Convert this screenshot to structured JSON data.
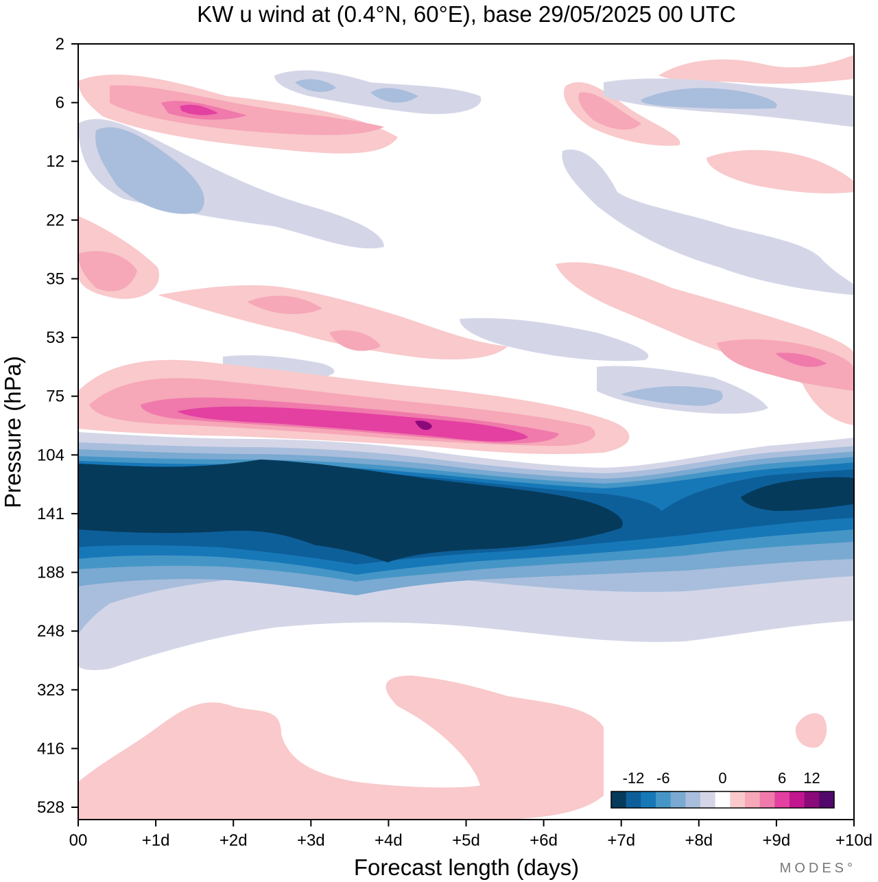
{
  "chart_data": {
    "type": "heatmap",
    "title": "KW u wind at (0.4°N, 60°E),  base 29/05/2025  00 UTC",
    "xlabel": "Forecast length (days)",
    "ylabel": "Pressure (hPa)",
    "x_ticks": [
      "00",
      "+1d",
      "+2d",
      "+3d",
      "+4d",
      "+5d",
      "+6d",
      "+7d",
      "+8d",
      "+9d",
      "+10d"
    ],
    "y_ticks": [
      "2",
      "6",
      "12",
      "22",
      "35",
      "53",
      "75",
      "104",
      "141",
      "188",
      "248",
      "323",
      "416",
      "528"
    ],
    "xlim": [
      0,
      10
    ],
    "y_scale": "log",
    "colorbar": {
      "labels": [
        "-12",
        "-6",
        "0",
        "6",
        "12"
      ],
      "levels": [
        -14,
        -12,
        -10,
        -8,
        -6,
        -4,
        -2,
        2,
        4,
        6,
        8,
        10,
        12,
        14
      ],
      "colors": [
        "#063a5a",
        "#0d5f9a",
        "#1778b8",
        "#4596c6",
        "#7aa9d1",
        "#a9bedc",
        "#d4d6e8",
        "#ffffff",
        "#f9c9cb",
        "#f6a7b8",
        "#f07aab",
        "#e340a1",
        "#c2168e",
        "#8a0a7a",
        "#52086a"
      ],
      "placement": "bottom-right"
    },
    "features": [
      {
        "x_range": [
          0,
          10
        ],
        "y_range": [
          100,
          175
        ],
        "value": -14
      },
      {
        "x_range": [
          0.2,
          6
        ],
        "y_range": [
          80,
          95
        ],
        "value": 10
      },
      {
        "x_range": [
          0,
          10
        ],
        "y_range": [
          175,
          300
        ],
        "value": -4
      },
      {
        "x_range": [
          0,
          3.5
        ],
        "y_range": [
          6,
          9
        ],
        "value": 8
      },
      {
        "x_range": [
          0.2,
          1.5
        ],
        "y_range": [
          9,
          22
        ],
        "value": -4
      },
      {
        "x_range": [
          7.5,
          10
        ],
        "y_range": [
          5,
          8
        ],
        "value": -4
      },
      {
        "x_range": [
          8.7,
          10
        ],
        "y_range": [
          50,
          70
        ],
        "value": 6
      },
      {
        "x_range": [
          1.5,
          7
        ],
        "y_range": [
          330,
          560
        ],
        "value": 2
      }
    ]
  },
  "branding": {
    "logo_text": "MODES°"
  }
}
